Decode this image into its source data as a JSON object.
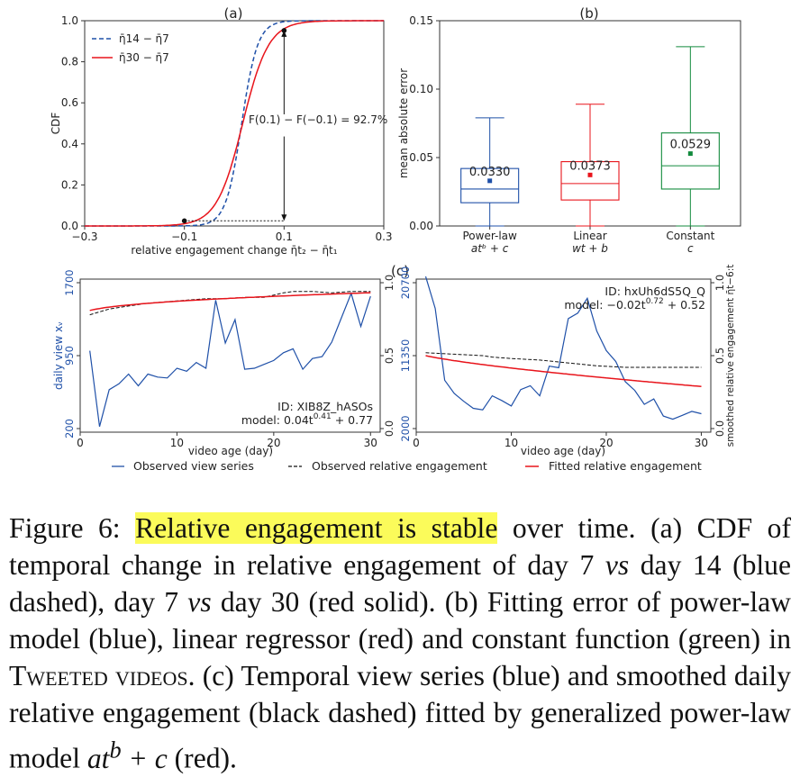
{
  "colors": {
    "blue": "#1f50a8",
    "red": "#e8141b",
    "green": "#138a3d",
    "black": "#111111",
    "highlight": "#fbfb5a"
  },
  "panels": {
    "a": {
      "label": "(a)"
    },
    "b": {
      "label": "(b)"
    },
    "c": {
      "label": "(c)"
    }
  },
  "caption": {
    "fig_label": "Figure 6: ",
    "highlight": "Relative engagement is stable",
    "t1": " over time. (a) CDF of temporal change in relative engagement of day 7 ",
    "vs1": "vs",
    "t2": " day 14 (blue dashed), day 7 ",
    "vs2": "vs",
    "t3": " day 30 (red solid). (b) Fitting error of power-law model (blue), linear regressor (red) and constant function (green) in ",
    "tweeted": "Tweeted videos",
    "t4": ". (c) Temporal view series (blue) and smoothed daily relative engagement (black dashed) fitted by generalized power-law model ",
    "model": "at",
    "model_sup": "b",
    "model_tail": " + c",
    "t5": " (red)."
  },
  "chart_data": [
    {
      "panel": "(a)",
      "type": "line",
      "xlabel": "relative engagement change η̄t₂ − η̄t₁",
      "ylabel": "CDF",
      "xlim": [
        -0.3,
        0.3
      ],
      "ylim": [
        0,
        1
      ],
      "xticks": [
        "−0.3",
        "−0.1",
        "0.1",
        "0.3"
      ],
      "yticks": [
        "0.0",
        "0.2",
        "0.4",
        "0.6",
        "0.8",
        "1.0"
      ],
      "legend_position": "top-left",
      "series": [
        {
          "name": "η̄14 − η̄7",
          "style": "dashed",
          "color": "#1f50a8",
          "mu": 0.015,
          "s": 0.016
        },
        {
          "name": "η̄30 − η̄7",
          "style": "solid",
          "color": "#e8141b",
          "mu": 0.017,
          "s": 0.026
        }
      ],
      "annotation": "F(0.1) − F(−0.1) = 92.7%",
      "markers": [
        {
          "x": -0.1,
          "y": 0.025
        },
        {
          "x": 0.1,
          "y": 0.952
        }
      ]
    },
    {
      "panel": "(b)",
      "type": "box",
      "ylabel": "mean absolute error",
      "ylim": [
        0,
        0.15
      ],
      "yticks": [
        "0.00",
        "0.05",
        "0.10",
        "0.15"
      ],
      "boxes": [
        {
          "label": "Power-law",
          "formula": "atᵇ + c",
          "color": "#1f50a8",
          "whislo": 0.0,
          "q1": 0.017,
          "median": 0.027,
          "q3": 0.042,
          "whishi": 0.079,
          "mean": 0.033,
          "mean_label": "0.0330"
        },
        {
          "label": "Linear",
          "formula": "wt + b",
          "color": "#e8141b",
          "whislo": 0.0,
          "q1": 0.019,
          "median": 0.031,
          "q3": 0.047,
          "whishi": 0.089,
          "mean": 0.0373,
          "mean_label": "0.0373"
        },
        {
          "label": "Constant",
          "formula": "c",
          "color": "#138a3d",
          "whislo": 0.0,
          "q1": 0.027,
          "median": 0.044,
          "q3": 0.068,
          "whishi": 0.131,
          "mean": 0.0529,
          "mean_label": "0.0529"
        }
      ]
    },
    {
      "panel": "(c) left",
      "type": "line",
      "id_text": "ID: XIB8Z_hASOs",
      "model_text": "model: 0.04t^0.41 + 0.77",
      "model_prefix": "model: 0.04t",
      "model_sup": "0.41",
      "model_suffix": " + 0.77",
      "xlabel": "video age (day)",
      "ylabel": "daily view xᵥ",
      "xlim": [
        0,
        31
      ],
      "xticks": [
        "0",
        "10",
        "20",
        "30"
      ],
      "y_left_lim": [
        200,
        1700
      ],
      "y_left_ticks": [
        "200",
        "950",
        "1700"
      ],
      "y_right_lim": [
        0,
        1
      ],
      "y_right_ticks": [
        "0.0",
        "0.5",
        "1.0"
      ],
      "views_x": [
        1,
        2,
        3,
        4,
        5,
        6,
        7,
        8,
        9,
        10,
        11,
        12,
        13,
        14,
        15,
        16,
        17,
        18,
        19,
        20,
        21,
        22,
        23,
        24,
        25,
        26,
        27,
        28,
        29,
        30
      ],
      "views": [
        1000,
        220,
        600,
        660,
        760,
        640,
        760,
        730,
        720,
        820,
        790,
        880,
        820,
        1520,
        1080,
        1320,
        810,
        820,
        860,
        900,
        980,
        1020,
        810,
        920,
        940,
        1090,
        1340,
        1590,
        1250,
        1560
      ],
      "engagement_x": [
        1,
        3,
        5,
        7,
        9,
        11,
        13,
        15,
        17,
        19,
        21,
        22,
        24,
        26,
        28,
        30
      ],
      "engagement": [
        0.78,
        0.82,
        0.84,
        0.86,
        0.87,
        0.88,
        0.89,
        0.89,
        0.9,
        0.9,
        0.93,
        0.94,
        0.94,
        0.93,
        0.94,
        0.94
      ],
      "fit": {
        "a": 0.04,
        "b": 0.41,
        "c": 0.77
      }
    },
    {
      "panel": "(c) right",
      "type": "line",
      "id_text": "ID: hxUh6dS5Q_Q",
      "model_text": "model: −0.02t^0.72 + 0.52",
      "model_prefix": "model: −0.02t",
      "model_sup": "0.72",
      "model_suffix": " + 0.52",
      "xlabel": "video age (day)",
      "xlim": [
        0,
        31
      ],
      "xticks": [
        "0",
        "10",
        "20",
        "30"
      ],
      "y_left_lim": [
        2000,
        20700
      ],
      "y_left_ticks": [
        "2000",
        "11350",
        "20700"
      ],
      "y_right_lim": [
        0,
        1
      ],
      "y_right_ticks": [
        "0.0",
        "0.5",
        "1.0"
      ],
      "y_right_label": "smoothed relative engagement η̄t−6:t",
      "views_x": [
        1,
        2,
        3,
        4,
        5,
        6,
        7,
        8,
        9,
        10,
        11,
        12,
        13,
        14,
        15,
        16,
        17,
        18,
        19,
        20,
        21,
        22,
        23,
        24,
        25,
        26,
        27,
        28,
        29,
        30
      ],
      "views": [
        21500,
        17400,
        8200,
        6500,
        5500,
        4600,
        4400,
        6200,
        5600,
        4900,
        7000,
        7500,
        6200,
        10000,
        9800,
        16100,
        16800,
        18700,
        14500,
        12000,
        10600,
        8000,
        6900,
        5100,
        5800,
        3600,
        3200,
        3700,
        4200,
        3900
      ],
      "engagement_x": [
        1,
        4,
        7,
        8,
        10,
        13,
        16,
        19,
        22,
        25,
        30
      ],
      "engagement": [
        0.52,
        0.51,
        0.5,
        0.49,
        0.48,
        0.47,
        0.45,
        0.43,
        0.42,
        0.42,
        0.42
      ],
      "fit": {
        "a": -0.02,
        "b": 0.72,
        "c": 0.52
      }
    }
  ],
  "legend_c": {
    "views": "Observed view series",
    "engagement": "Observed relative engagement",
    "fit": "Fitted relative engagement"
  }
}
